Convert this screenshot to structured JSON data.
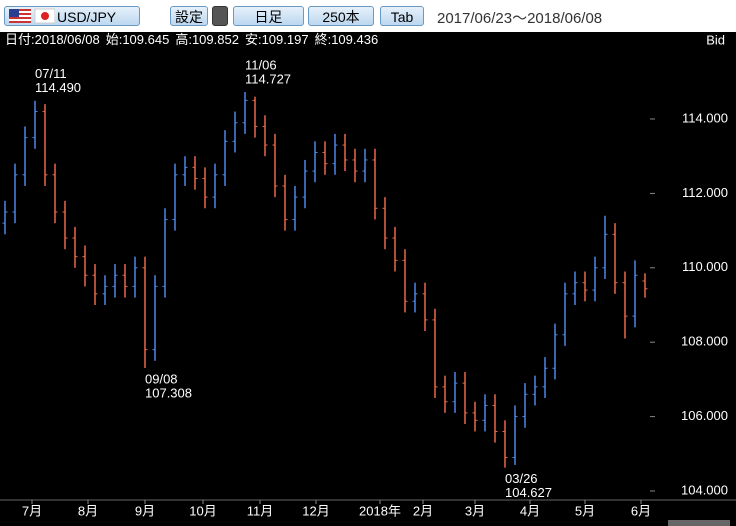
{
  "toolbar": {
    "pair": "USD/JPY",
    "buttons": [
      "設定",
      "日足",
      "250本",
      "Tab"
    ],
    "range": "2017/06/23～2018/06/08"
  },
  "info": {
    "fields": [
      {
        "label": "日付:",
        "value": "2018/06/08"
      },
      {
        "label": "始:",
        "value": "109.645"
      },
      {
        "label": "高:",
        "value": "109.852"
      },
      {
        "label": "安:",
        "value": "109.197"
      },
      {
        "label": "終:",
        "value": "109.436"
      }
    ],
    "side": "Bid"
  },
  "chart_data": {
    "type": "ohlc",
    "up_color": "#4f86e8",
    "down_color": "#e8684a",
    "open": [
      111.2,
      111.5,
      112.5,
      113.5,
      114.2,
      112.5,
      111.5,
      110.8,
      110.3,
      109.8,
      109.3,
      109.5,
      109.8,
      109.5,
      110.0,
      107.8,
      109.5,
      111.3,
      112.5,
      112.7,
      112.4,
      111.9,
      112.5,
      113.4,
      113.9,
      114.5,
      113.8,
      113.3,
      112.2,
      111.3,
      111.9,
      112.6,
      113.1,
      112.8,
      113.3,
      112.9,
      112.6,
      112.9,
      111.6,
      110.8,
      110.2,
      109.1,
      109.3,
      108.6,
      106.8,
      106.4,
      106.9,
      106.1,
      105.9,
      106.3,
      105.6,
      104.9,
      106.0,
      106.6,
      106.8,
      107.3,
      108.2,
      109.3,
      109.6,
      109.4,
      110.0,
      110.9,
      109.6,
      108.7,
      109.645
    ],
    "high": [
      111.8,
      112.8,
      113.8,
      114.49,
      114.4,
      112.8,
      111.8,
      111.1,
      110.6,
      110.1,
      109.8,
      110.1,
      110.1,
      110.3,
      110.3,
      109.8,
      111.6,
      112.8,
      113.0,
      113.0,
      112.7,
      112.8,
      113.7,
      114.2,
      114.727,
      114.6,
      114.1,
      113.6,
      112.5,
      112.2,
      112.9,
      113.4,
      113.4,
      113.6,
      113.6,
      113.2,
      113.2,
      113.2,
      111.9,
      111.1,
      110.5,
      109.6,
      109.6,
      108.9,
      107.1,
      107.2,
      107.2,
      106.4,
      106.6,
      106.6,
      105.9,
      106.3,
      106.9,
      107.1,
      107.6,
      108.5,
      109.6,
      109.9,
      109.9,
      110.3,
      111.4,
      111.2,
      109.9,
      110.2,
      109.852
    ],
    "low": [
      110.9,
      111.2,
      112.2,
      113.2,
      112.2,
      111.2,
      110.5,
      110.0,
      109.5,
      109.0,
      109.0,
      109.2,
      109.2,
      109.2,
      107.308,
      107.5,
      109.2,
      111.0,
      112.2,
      112.1,
      111.6,
      111.6,
      112.2,
      113.1,
      113.6,
      113.5,
      113.0,
      111.9,
      111.0,
      111.0,
      111.6,
      112.3,
      112.5,
      112.5,
      112.6,
      112.3,
      112.3,
      111.3,
      110.5,
      109.9,
      108.8,
      108.8,
      108.3,
      106.5,
      106.1,
      106.1,
      105.8,
      105.6,
      105.6,
      105.3,
      104.627,
      104.7,
      105.7,
      106.3,
      106.5,
      107.0,
      107.9,
      109.0,
      109.1,
      109.1,
      109.7,
      109.3,
      108.1,
      108.4,
      109.197
    ],
    "close": [
      111.5,
      112.5,
      113.5,
      114.2,
      112.5,
      111.5,
      110.8,
      110.3,
      109.8,
      109.3,
      109.5,
      109.8,
      109.5,
      110.0,
      107.8,
      109.5,
      111.3,
      112.5,
      112.7,
      112.4,
      111.9,
      112.5,
      113.4,
      113.9,
      114.5,
      113.8,
      113.3,
      112.2,
      111.3,
      111.9,
      112.6,
      113.1,
      112.8,
      113.3,
      112.9,
      112.6,
      112.9,
      111.6,
      110.8,
      110.2,
      109.1,
      109.3,
      108.6,
      106.8,
      106.4,
      106.9,
      106.1,
      105.9,
      106.3,
      105.6,
      104.9,
      106.0,
      106.6,
      106.8,
      107.3,
      108.2,
      109.3,
      109.6,
      109.4,
      110.0,
      110.9,
      109.6,
      108.7,
      109.8,
      109.436
    ],
    "xlim": [
      0,
      64
    ],
    "xticks": [
      {
        "value": 2.7,
        "label": "7月"
      },
      {
        "value": 8.3,
        "label": "8月"
      },
      {
        "value": 14,
        "label": "9月"
      },
      {
        "value": 19.8,
        "label": "10月"
      },
      {
        "value": 25.5,
        "label": "11月"
      },
      {
        "value": 31.1,
        "label": "12月"
      },
      {
        "value": 37.5,
        "label": "2018年"
      },
      {
        "value": 41.8,
        "label": "2月"
      },
      {
        "value": 47,
        "label": "3月"
      },
      {
        "value": 52.5,
        "label": "4月"
      },
      {
        "value": 58,
        "label": "5月"
      },
      {
        "value": 63.6,
        "label": "6月"
      }
    ],
    "ylim": [
      103.758,
      115.855
    ],
    "yticks": [
      {
        "value": 104,
        "label": "104.000"
      },
      {
        "value": 106,
        "label": "106.000"
      },
      {
        "value": 108,
        "label": "108.000"
      },
      {
        "value": 110,
        "label": "110.000"
      },
      {
        "value": 112,
        "label": "112.000"
      },
      {
        "value": 114,
        "label": "114.000"
      }
    ],
    "annotations": [
      {
        "date": "07/11",
        "value": 114.49,
        "label": "114.490"
      },
      {
        "date": "09/08",
        "value": 107.308,
        "label": "107.308"
      },
      {
        "date": "11/06",
        "value": 114.727,
        "label": "114.727"
      },
      {
        "date": "03/26",
        "value": 104.627,
        "label": "104.627"
      }
    ],
    "grid": false
  }
}
